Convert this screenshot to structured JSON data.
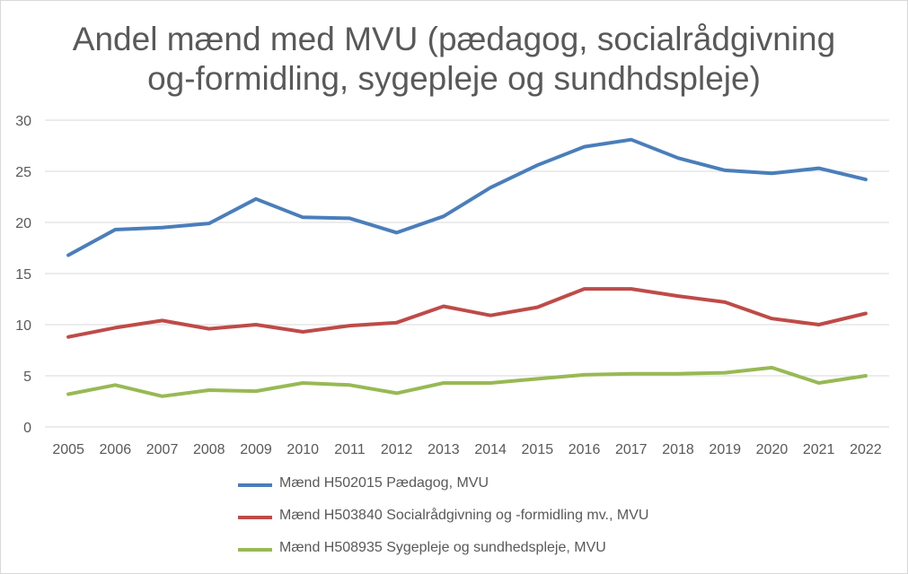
{
  "chart_data": {
    "type": "line",
    "title_line1": "Andel mænd med MVU (pædagog, socialrådgivning",
    "title_line2": "og-formidling, sygepleje og sundhdspleje)",
    "categories": [
      "2005",
      "2006",
      "2007",
      "2008",
      "2009",
      "2010",
      "2011",
      "2012",
      "2013",
      "2014",
      "2015",
      "2016",
      "2017",
      "2018",
      "2019",
      "2020",
      "2021",
      "2022"
    ],
    "y_ticks": [
      "0",
      "5",
      "10",
      "15",
      "20",
      "25",
      "30"
    ],
    "ylim": [
      0,
      30
    ],
    "grid": true,
    "legend_position": "bottom",
    "xlabel": "",
    "ylabel": "",
    "series": [
      {
        "name": "Mænd H502015 Pædagog, MVU",
        "color": "#4a7ebb",
        "values": [
          16.8,
          19.3,
          19.5,
          19.9,
          22.3,
          20.5,
          20.4,
          19.0,
          20.6,
          23.4,
          25.6,
          27.4,
          28.1,
          26.3,
          25.1,
          24.8,
          25.3,
          24.2
        ]
      },
      {
        "name": "Mænd H503840 Socialrådgivning og -formidling mv., MVU",
        "color": "#be4b48",
        "values": [
          8.8,
          9.7,
          10.4,
          9.6,
          10.0,
          9.3,
          9.9,
          10.2,
          11.8,
          10.9,
          11.7,
          13.5,
          13.5,
          12.8,
          12.2,
          10.6,
          10.0,
          11.1
        ]
      },
      {
        "name": "Mænd H508935 Sygepleje og sundhedspleje, MVU",
        "color": "#98b954",
        "values": [
          3.2,
          4.1,
          3.0,
          3.6,
          3.5,
          4.3,
          4.1,
          3.3,
          4.3,
          4.3,
          4.7,
          5.1,
          5.2,
          5.2,
          5.3,
          5.8,
          4.3,
          5.0
        ]
      }
    ]
  }
}
